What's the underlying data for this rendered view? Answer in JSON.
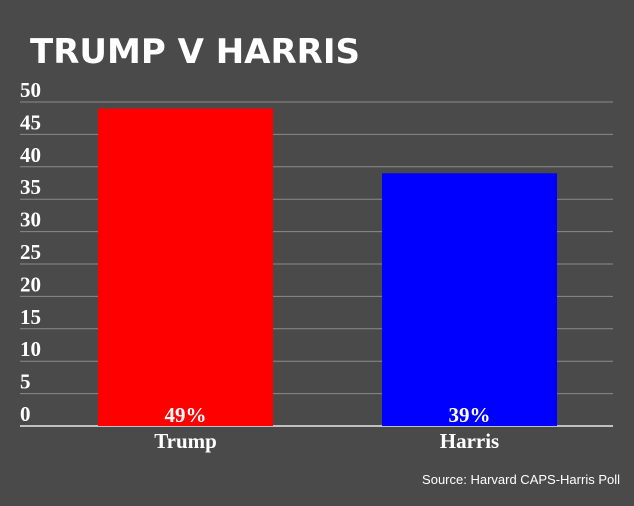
{
  "chart_data": {
    "type": "bar",
    "title": "TRUMP V HARRIS",
    "categories": [
      "Trump",
      "Harris"
    ],
    "values": [
      49,
      39
    ],
    "data_labels": [
      "49%",
      "39%"
    ],
    "bar_colors": [
      "#ff0000",
      "#0000ff"
    ],
    "ylim": [
      0,
      50
    ],
    "yticks": [
      "0",
      "5",
      "10",
      "15",
      "20",
      "25",
      "30",
      "35",
      "40",
      "45",
      "50"
    ],
    "grid": true,
    "source": "Source: Harvard CAPS-Harris Poll"
  },
  "colors": {
    "background": "#4a4a4a",
    "gridline": "#8a8a8a",
    "axis": "#e8e8e8",
    "text": "#ffffff"
  }
}
